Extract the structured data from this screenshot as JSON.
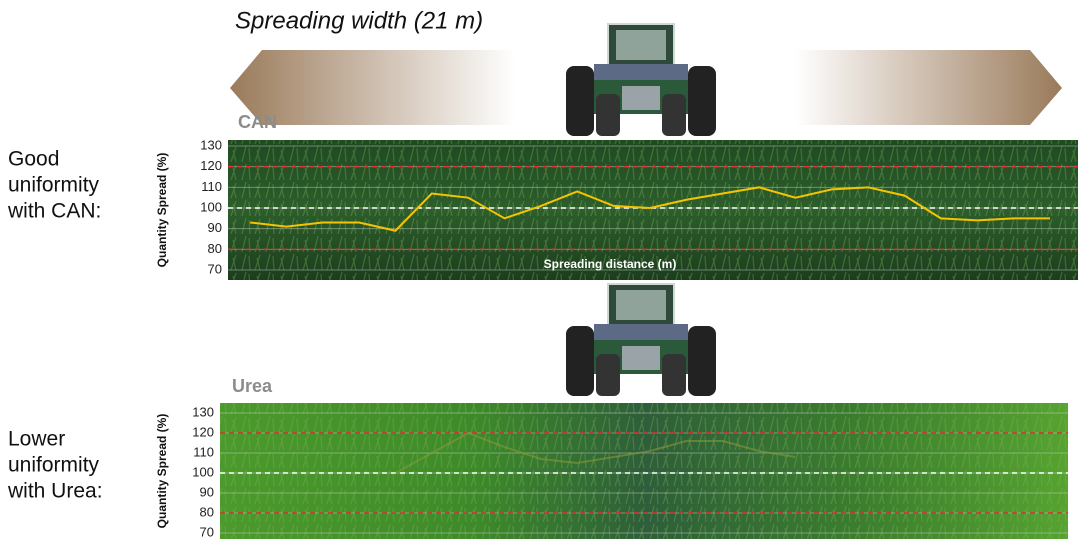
{
  "header": {
    "title": "Spreading width (21 m)"
  },
  "chart_data": [
    {
      "type": "line",
      "title": "CAN",
      "caption": [
        "Good",
        "uniformity",
        "with CAN:"
      ],
      "ylabel": "Quantity Spread (%)",
      "xlabel": "Spreading distance (m)",
      "values": [
        93,
        91,
        93,
        93,
        89,
        107,
        105,
        95,
        101,
        108,
        101,
        100,
        104,
        107,
        110,
        105,
        109,
        110,
        106,
        95,
        94,
        95,
        95
      ],
      "color": "#f5c400",
      "ylim": [
        70,
        130
      ],
      "yticks": [
        70,
        80,
        90,
        100,
        110,
        120,
        130
      ],
      "grid": true,
      "reference_lines": [
        {
          "value": 120,
          "color": "#e03030"
        },
        {
          "value": 100,
          "color": "#ffffff"
        },
        {
          "value": 80,
          "color": "#e03030"
        }
      ]
    },
    {
      "type": "line",
      "title": "Urea",
      "caption": [
        "Lower",
        "uniformity",
        "with Urea:"
      ],
      "ylabel": "Quantity Spread (%)",
      "values": [
        null,
        null,
        null,
        null,
        100,
        110,
        120,
        113,
        107,
        105,
        108,
        111,
        116,
        116,
        111,
        108,
        null,
        null,
        null,
        null,
        null,
        null,
        null
      ],
      "color": "#8c9a3a",
      "ylim": [
        70,
        130
      ],
      "yticks": [
        70,
        80,
        90,
        100,
        110,
        120,
        130
      ],
      "grid": true,
      "reference_lines": [
        {
          "value": 120,
          "color": "#e03030"
        },
        {
          "value": 100,
          "color": "#ffffff"
        },
        {
          "value": 80,
          "color": "#e03030"
        }
      ]
    }
  ]
}
